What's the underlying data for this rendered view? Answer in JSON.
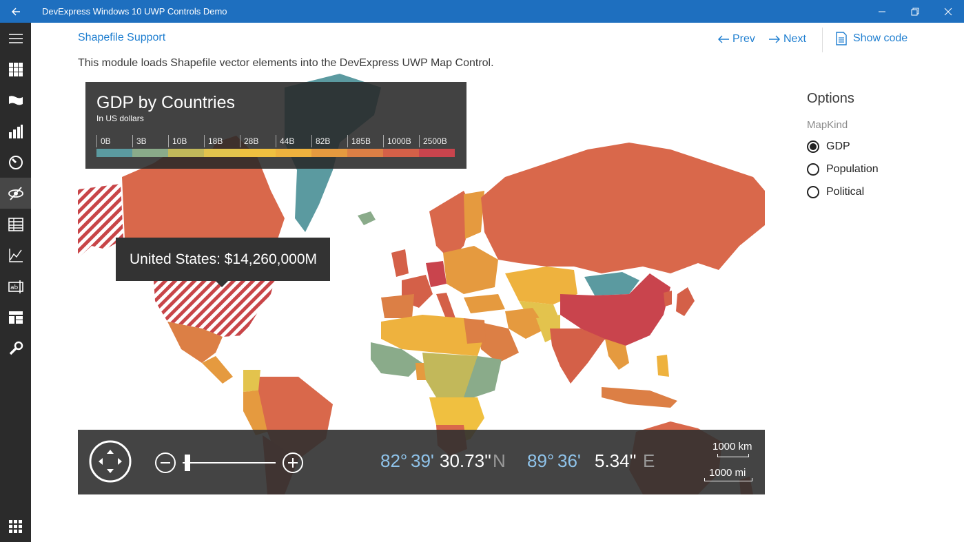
{
  "window": {
    "title": "DevExpress Windows 10 UWP Controls Demo",
    "accent_color": "#1e6fbf",
    "back_icon": "back-arrow-icon",
    "controls": [
      "minimize-icon",
      "restore-icon",
      "close-icon"
    ]
  },
  "sidebar": {
    "background": "#2b2b2b",
    "items": [
      {
        "icon": "hamburger-menu-icon"
      },
      {
        "icon": "grid-icon"
      },
      {
        "icon": "flag-icon"
      },
      {
        "icon": "bar-chart-icon"
      },
      {
        "icon": "gauge-icon"
      },
      {
        "icon": "map-control-icon",
        "active": true
      },
      {
        "icon": "table-icon"
      },
      {
        "icon": "chart-line-icon"
      },
      {
        "icon": "editors-icon"
      },
      {
        "icon": "layout-icon"
      },
      {
        "icon": "wrench-icon"
      }
    ],
    "bottom_icon": "apps-grid-icon"
  },
  "header": {
    "module_title": "Shapefile Support",
    "prev_label": "Prev",
    "next_label": "Next",
    "show_code_label": "Show code",
    "link_color": "#1e7ed0"
  },
  "description": "This module loads Shapefile vector elements into the DevExpress UWP Map Control.",
  "legend": {
    "title": "GDP by Countries",
    "subtitle": "In US dollars",
    "items": [
      {
        "label": "0B",
        "color": "#5b9aa0"
      },
      {
        "label": "3B",
        "color": "#8aab8a"
      },
      {
        "label": "10B",
        "color": "#c2b85a"
      },
      {
        "label": "18B",
        "color": "#e3c34d"
      },
      {
        "label": "28B",
        "color": "#f0c040"
      },
      {
        "label": "44B",
        "color": "#eeb23e"
      },
      {
        "label": "82B",
        "color": "#e59a3f"
      },
      {
        "label": "185B",
        "color": "#dc7f45"
      },
      {
        "label": "1000B",
        "color": "#d46048"
      },
      {
        "label": "2500B",
        "color": "#c9444d"
      }
    ]
  },
  "tooltip": {
    "text": "United States: $14,260,000M"
  },
  "navigation": {
    "pan_icon": "pan-control-icon",
    "zoom_out_icon": "zoom-out-icon",
    "zoom_in_icon": "zoom-in-icon",
    "zoom_level": 0.02,
    "lat_deg": "82°",
    "lat_min": "39'",
    "lat_sec": "30.73''",
    "lat_hem": "N",
    "lon_deg": "89°",
    "lon_min": "36'",
    "lon_sec": "5.34''",
    "lon_hem": "E",
    "scale_km": "1000 km",
    "scale_mi": "1000 mi"
  },
  "options": {
    "title": "Options",
    "group_label": "MapKind",
    "choices": [
      {
        "label": "GDP",
        "selected": true
      },
      {
        "label": "Population",
        "selected": false
      },
      {
        "label": "Political",
        "selected": false
      }
    ]
  }
}
